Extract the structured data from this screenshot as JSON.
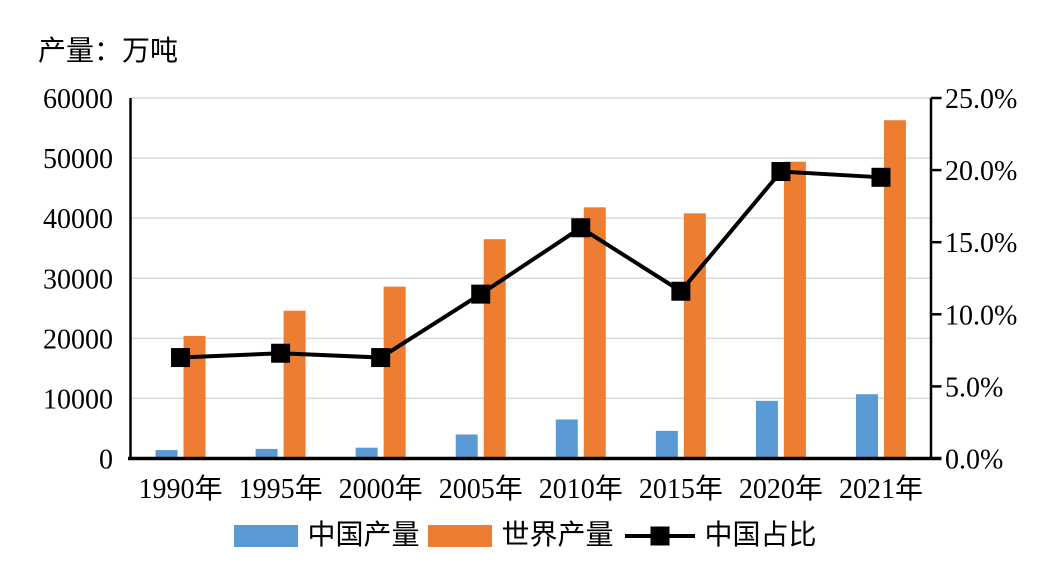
{
  "title": "产量：万吨",
  "chart_data": {
    "type": "bar+line",
    "categories": [
      "1990年",
      "1995年",
      "2000年",
      "2005年",
      "2010年",
      "2015年",
      "2020年",
      "2021年"
    ],
    "series": [
      {
        "key": "china-production",
        "name": "中国产量",
        "type": "bar",
        "axis": "left",
        "color": "#5B9BD5",
        "values": [
          1400,
          1600,
          1800,
          4000,
          6500,
          4600,
          9600,
          10700
        ]
      },
      {
        "key": "world-production",
        "name": "世界产量",
        "type": "bar",
        "axis": "left",
        "color": "#ED7D31",
        "values": [
          20400,
          24600,
          28600,
          36500,
          41800,
          40800,
          49400,
          56300
        ]
      },
      {
        "key": "china-share",
        "name": "中国占比",
        "type": "line",
        "axis": "right",
        "color": "#000000",
        "marker": "square",
        "unit": "%",
        "values": [
          7.0,
          7.3,
          7.0,
          11.4,
          16.0,
          11.6,
          19.9,
          19.5
        ]
      }
    ],
    "left_axis": {
      "title": "产量：万吨",
      "min": 0,
      "max": 60000,
      "step": 10000,
      "tick_labels": [
        "0",
        "10000",
        "20000",
        "30000",
        "40000",
        "50000",
        "60000"
      ]
    },
    "right_axis": {
      "min": 0,
      "max": 25,
      "step": 5,
      "tick_labels": [
        "0.0%",
        "5.0%",
        "10.0%",
        "15.0%",
        "20.0%",
        "25.0%"
      ]
    },
    "grid": true,
    "legend_position": "bottom"
  },
  "legend": [
    {
      "label": "中国产量",
      "color": "#5B9BD5",
      "type": "bar-swatch"
    },
    {
      "label": "世界产量",
      "color": "#ED7D31",
      "type": "bar-swatch"
    },
    {
      "label": "中国占比",
      "color": "#000000",
      "type": "line-marker"
    }
  ],
  "colors": {
    "china_bar": "#5B9BD5",
    "world_bar": "#ED7D31",
    "share_line": "#000000",
    "gridline": "#D9D9D9",
    "axis": "#000000",
    "background": "#FFFFFF"
  }
}
